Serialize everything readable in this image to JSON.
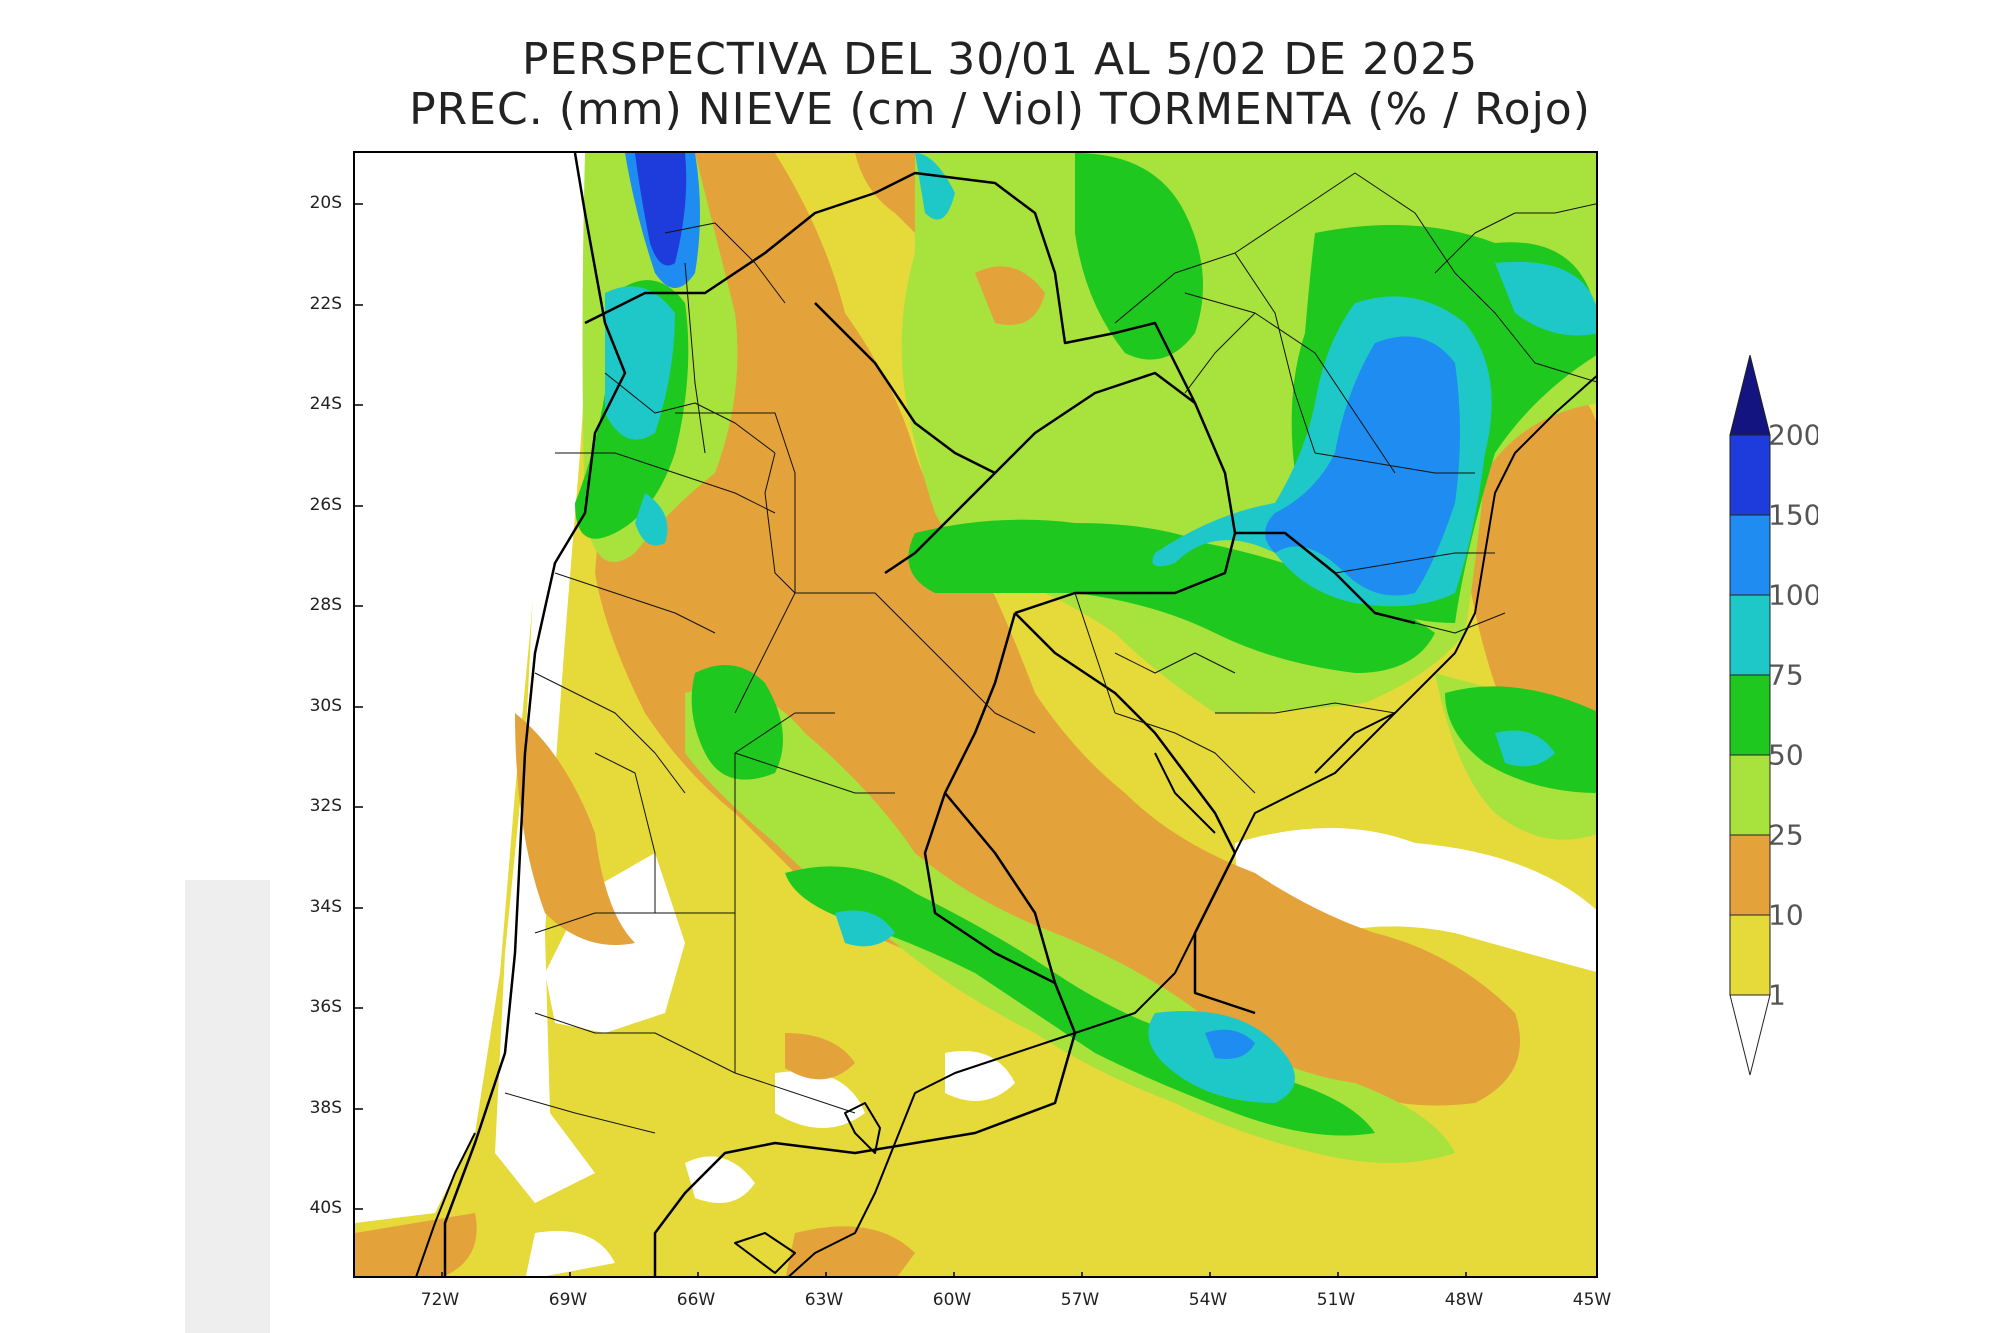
{
  "title": {
    "line1": "PERSPECTIVA DEL 30/01 AL 5/02 DE 2025",
    "line2": "PREC. (mm) NIEVE (cm / Viol) TORMENTA (% / Rojo)"
  },
  "axes": {
    "latitudes": [
      "20S",
      "22S",
      "24S",
      "26S",
      "28S",
      "30S",
      "32S",
      "34S",
      "36S",
      "38S",
      "40S"
    ],
    "longitudes": [
      "72W",
      "69W",
      "66W",
      "63W",
      "60W",
      "57W",
      "54W",
      "51W",
      "48W",
      "45W"
    ]
  },
  "legend": {
    "unit": "mm",
    "levels": [
      "1",
      "10",
      "25",
      "50",
      "75",
      "100",
      "150",
      "200"
    ],
    "colors": {
      "1-10": "#e6d93a",
      "10-25": "#e3a23a",
      "25-50": "#a8e23c",
      "50-75": "#1ec81e",
      "75-100": "#1ec8c8",
      "100-150": "#1e8cf0",
      "150-200": "#1e3cdc",
      "200+": "#141480"
    }
  }
}
